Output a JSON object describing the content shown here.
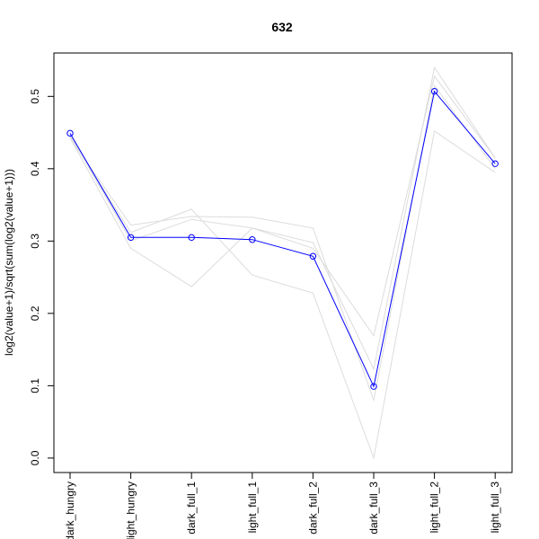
{
  "chart_data": {
    "type": "line",
    "title": "632",
    "xlabel": "",
    "ylabel": "log2(value+1)/sqrt(sum(log2(value+1)))",
    "categories": [
      "dark_hungry",
      "light_hungry",
      "dark_full_1",
      "light_full_1",
      "dark_full_2",
      "dark_full_3",
      "light_full_2",
      "light_full_3"
    ],
    "ylim": [
      -0.02,
      0.56
    ],
    "yticks": [
      0.0,
      0.1,
      0.2,
      0.3,
      0.4,
      0.5
    ],
    "ytick_labels": [
      "0.0",
      "0.1",
      "0.2",
      "0.3",
      "0.4",
      "0.5"
    ],
    "grid": false,
    "series": [
      {
        "values": [
          0.449,
          0.305,
          0.305,
          0.302,
          0.279,
          0.099,
          0.507,
          0.407
        ],
        "color": "#0000ff",
        "markers": true
      }
    ],
    "background_series": [
      {
        "values": [
          0.447,
          0.3,
          0.33,
          0.318,
          0.298,
          0.123,
          0.54,
          0.415
        ],
        "color": "#dcdcdc"
      },
      {
        "values": [
          0.444,
          0.312,
          0.344,
          0.253,
          0.228,
          0.0,
          0.452,
          0.395
        ],
        "color": "#dcdcdc"
      },
      {
        "values": [
          0.443,
          0.29,
          0.237,
          0.318,
          0.29,
          0.169,
          0.528,
          0.415
        ],
        "color": "#dcdcdc"
      },
      {
        "values": [
          0.442,
          0.322,
          0.334,
          0.333,
          0.318,
          0.08,
          0.515,
          0.4
        ],
        "color": "#dcdcdc"
      }
    ]
  }
}
